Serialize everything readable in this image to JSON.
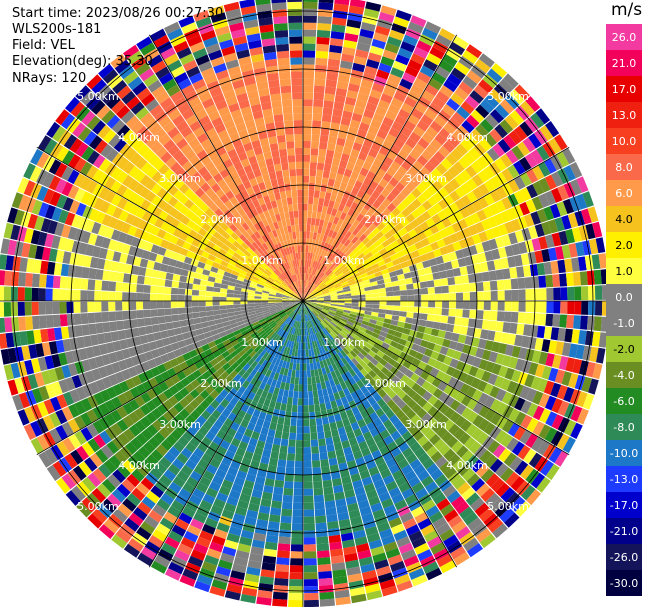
{
  "info": {
    "start_time": "Start time: 2023/08/26 00:27:30",
    "site": "WLS200s-181",
    "field": "Field: VEL",
    "elevation": "Elevation(deg): 35.30",
    "nrays": "NRays: 120"
  },
  "colorbar": {
    "unit": "m/s",
    "ticks": [
      "26.0",
      "21.0",
      "17.0",
      "13.0",
      "10.0",
      "8.0",
      "6.0",
      "4.0",
      "2.0",
      "1.0",
      "0.0",
      "-1.0",
      "-2.0",
      "-4.0",
      "-6.0",
      "-8.0",
      "-10.0",
      "-13.0",
      "-17.0",
      "-21.0",
      "-26.0",
      "-30.0"
    ],
    "colors": [
      "#f23aa0",
      "#f2005a",
      "#e80000",
      "#f02010",
      "#f84020",
      "#fa6a4a",
      "#ff9a4a",
      "#f6c21e",
      "#fff000",
      "#ffff40",
      "#808080",
      "#808080",
      "#a0c830",
      "#6b8e23",
      "#228b22",
      "#2e8b57",
      "#1e78c8",
      "#1e3cff",
      "#0000cd",
      "#00008b",
      "#14145a",
      "#000040"
    ]
  },
  "chart_data": {
    "type": "heatmap",
    "projection": "polar PPI",
    "field": "VEL",
    "units": "m/s",
    "nrays": 120,
    "range_rings_km": [
      1,
      2,
      3,
      4,
      5
    ],
    "range_ring_labels": [
      "1.00km",
      "2.00km",
      "3.00km",
      "4.00km",
      "5.00km"
    ],
    "max_range_km": 5.3,
    "color_levels": [
      -30,
      -26,
      -21,
      -17,
      -13,
      -10,
      -8,
      -6,
      -4,
      -2,
      -1,
      0,
      1,
      2,
      4,
      6,
      8,
      10,
      13,
      17,
      21,
      26
    ],
    "pattern": {
      "north_sector": 8.0,
      "northwest_northeast": 4.0,
      "west_east_band": 1.0,
      "west_southwest": 0.0,
      "southwest": -4.0,
      "south_sector": -8.0,
      "noise_beyond_km": 4.4
    },
    "grid": true
  }
}
